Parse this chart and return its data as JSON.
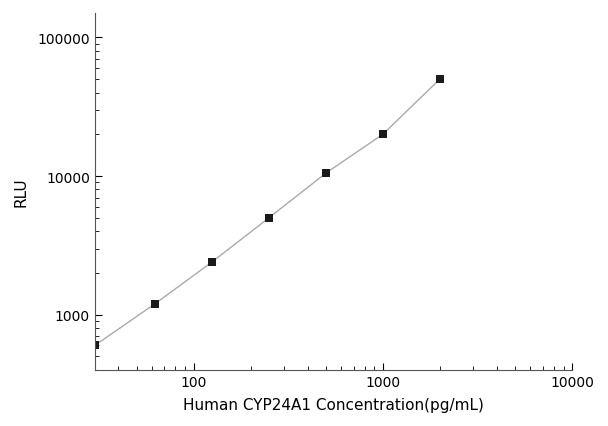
{
  "x": [
    30,
    62.5,
    125,
    250,
    500,
    1000,
    2000
  ],
  "y": [
    600,
    1200,
    2400,
    5000,
    10500,
    20000,
    50000
  ],
  "xlabel": "Human CYP24A1 Concentration(pg/mL)",
  "ylabel": "RLU",
  "xlim": [
    30,
    10000
  ],
  "ylim": [
    400,
    150000
  ],
  "yticks": [
    1000,
    10000,
    100000
  ],
  "ytick_labels": [
    "1000",
    "10000",
    "100000"
  ],
  "xticks": [
    100,
    1000,
    10000
  ],
  "xtick_labels": [
    "100",
    "1000",
    "10000"
  ],
  "line_color": "#aaaaaa",
  "marker_color": "#1a1a1a",
  "marker_size": 6,
  "line_width": 1.0,
  "background_color": "#ffffff",
  "xlabel_fontsize": 11,
  "ylabel_fontsize": 11,
  "tick_fontsize": 10
}
